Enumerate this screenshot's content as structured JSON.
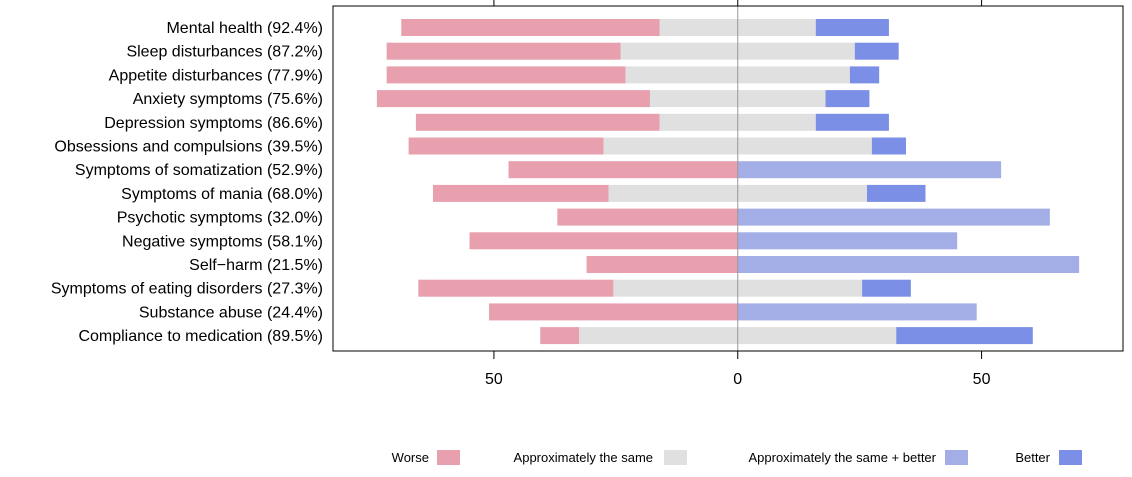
{
  "chart_data": {
    "type": "bar",
    "orientation": "horizontal",
    "stacked": "diverging",
    "categories": [
      "Mental health (92.4%)",
      "Sleep disturbances (87.2%)",
      "Appetite disturbances (77.9%)",
      "Anxiety symptoms (75.6%)",
      "Depression symptoms (86.6%)",
      "Obsessions and compulsions (39.5%)",
      "Symptoms of somatization (52.9%)",
      "Symptoms of mania (68.0%)",
      "Psychotic symptoms (32.0%)",
      "Negative symptoms (58.1%)",
      "Self−harm (21.5%)",
      "Symptoms of eating disorders (27.3%)",
      "Substance abuse (24.4%)",
      "Compliance to medication (89.5%)"
    ],
    "series": [
      {
        "name": "Worse",
        "values": [
          53,
          48,
          49,
          56,
          50,
          40,
          47,
          36,
          37,
          55,
          31,
          40,
          51,
          8
        ]
      },
      {
        "name": "Approximately the same",
        "values": [
          32,
          48,
          46,
          36,
          32,
          55,
          null,
          53,
          null,
          null,
          null,
          51,
          null,
          65
        ]
      },
      {
        "name": "Approximately the same + better",
        "values": [
          null,
          null,
          null,
          null,
          null,
          null,
          54,
          null,
          64,
          45,
          70,
          null,
          49,
          null
        ]
      },
      {
        "name": "Better",
        "values": [
          15,
          9,
          6,
          9,
          15,
          7,
          null,
          12,
          null,
          null,
          null,
          10,
          null,
          28
        ]
      }
    ],
    "neutral_split": "half",
    "colors": {
      "Worse": "#e8a0ae",
      "Approximately the same": "#e0e0e0",
      "Approximately the same + better": "#a3aee6",
      "Better": "#7b8fe6",
      "center_line": "#999999"
    },
    "xlim": [
      -83,
      79
    ],
    "xticks_bottom": [
      "50",
      "0",
      "50"
    ],
    "xticks_top_labeled": false,
    "xlabel": "",
    "ylabel": "",
    "title": "",
    "grid": false,
    "legend": {
      "placement": "bottom-right",
      "entries": [
        "Worse",
        "Approximately the same",
        "Approximately the same + better",
        "Better"
      ]
    }
  }
}
